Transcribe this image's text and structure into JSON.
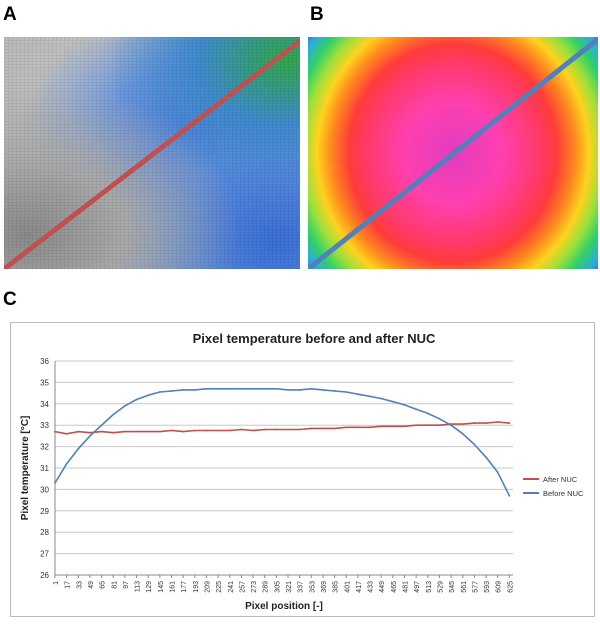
{
  "panels": {
    "a": {
      "label": "A"
    },
    "b": {
      "label": "B"
    },
    "c": {
      "label": "C"
    }
  },
  "colors": {
    "line_a": "#c0504d",
    "line_b": "#4f81bd",
    "after": "#c0504d",
    "before": "#4f81bd"
  },
  "chart_data": {
    "type": "line",
    "title": "Pixel temperature before and after NUC",
    "xlabel": "Pixel position [-]",
    "ylabel": "Pixel temperature [°C]",
    "ylim": [
      26,
      36
    ],
    "yticks": [
      26,
      27,
      28,
      29,
      30,
      31,
      32,
      33,
      34,
      35,
      36
    ],
    "xlim": [
      1,
      630
    ],
    "xticks": [
      1,
      17,
      33,
      49,
      65,
      81,
      97,
      113,
      129,
      145,
      161,
      177,
      193,
      209,
      225,
      241,
      257,
      273,
      289,
      305,
      321,
      337,
      353,
      369,
      385,
      401,
      417,
      433,
      449,
      465,
      481,
      497,
      513,
      529,
      545,
      561,
      577,
      593,
      609,
      625
    ],
    "grid": true,
    "legend_position": "right",
    "series": [
      {
        "name": "After NUC",
        "x": [
          1,
          17,
          33,
          49,
          65,
          81,
          97,
          113,
          129,
          145,
          161,
          177,
          193,
          209,
          225,
          241,
          257,
          273,
          289,
          305,
          321,
          337,
          353,
          369,
          385,
          401,
          417,
          433,
          449,
          465,
          481,
          497,
          513,
          529,
          545,
          561,
          577,
          593,
          609,
          625
        ],
        "y": [
          32.7,
          32.6,
          32.7,
          32.65,
          32.7,
          32.65,
          32.7,
          32.7,
          32.7,
          32.7,
          32.75,
          32.7,
          32.75,
          32.75,
          32.75,
          32.75,
          32.8,
          32.75,
          32.8,
          32.8,
          32.8,
          32.8,
          32.85,
          32.85,
          32.85,
          32.9,
          32.9,
          32.9,
          32.95,
          32.95,
          32.95,
          33.0,
          33.0,
          33.0,
          33.05,
          33.05,
          33.1,
          33.1,
          33.15,
          33.1
        ]
      },
      {
        "name": "Before NUC",
        "x": [
          1,
          17,
          33,
          49,
          65,
          81,
          97,
          113,
          129,
          145,
          161,
          177,
          193,
          209,
          225,
          241,
          257,
          273,
          289,
          305,
          321,
          337,
          353,
          369,
          385,
          401,
          417,
          433,
          449,
          465,
          481,
          497,
          513,
          529,
          545,
          561,
          577,
          593,
          609,
          625
        ],
        "y": [
          30.3,
          31.2,
          31.9,
          32.5,
          33.0,
          33.5,
          33.9,
          34.2,
          34.4,
          34.55,
          34.6,
          34.65,
          34.65,
          34.7,
          34.7,
          34.7,
          34.7,
          34.7,
          34.7,
          34.7,
          34.65,
          34.65,
          34.7,
          34.65,
          34.6,
          34.55,
          34.45,
          34.35,
          34.25,
          34.1,
          33.95,
          33.75,
          33.55,
          33.3,
          33.0,
          32.6,
          32.1,
          31.5,
          30.8,
          29.7
        ]
      }
    ]
  }
}
